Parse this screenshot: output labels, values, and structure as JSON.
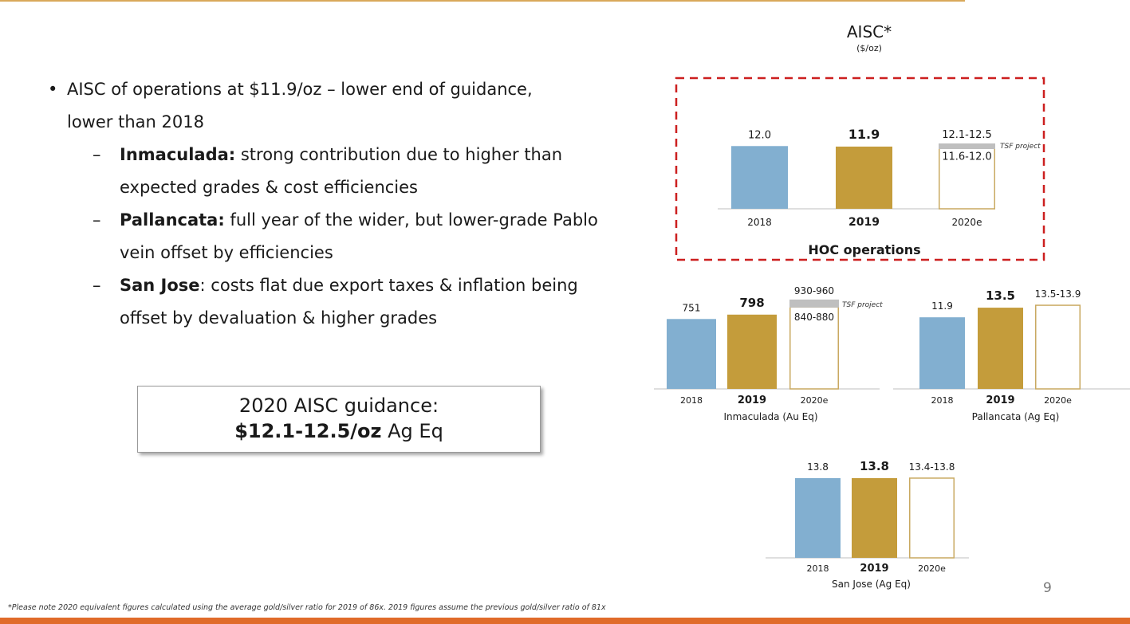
{
  "bullets": {
    "main_line1": "AISC of operations at $11.9/oz – lower end of guidance,",
    "main_line2": "lower than 2018",
    "dot": "•",
    "dash": "–",
    "inmaculada": {
      "label": "Inmaculada:",
      "line1": " strong contribution due to higher than",
      "line2": "expected grades & cost efficiencies"
    },
    "pallancata": {
      "label": "Pallancata:",
      "line1": " full year of the wider, but lower-grade Pablo",
      "line2": "vein offset by efficiencies"
    },
    "san_jose": {
      "label": "San Jose",
      "line1": ":  costs flat due export taxes & inflation being",
      "line2": "offset by devaluation & higher grades"
    }
  },
  "guidance": {
    "line1": "2020 AISC guidance:",
    "value": "$12.1-12.5/oz",
    "unit": " Ag Eq"
  },
  "aisc_title": "AISC*",
  "aisc_unit": "($/oz)",
  "footnote": "*Please note 2020 equivalent figures calculated using the average gold/silver ratio for 2019 of 86x. 2019 figures assume the previous gold/silver ratio of 81x",
  "page_number": "9",
  "colors": {
    "y2018": "#82afd0",
    "y2019": "#c49c3b",
    "guide_outline": "#c9a961",
    "tsf": "#bfbfbf",
    "dash_box": "#cc1f1f",
    "axis": "#bfbfbf"
  },
  "chart_data": [
    {
      "id": "hoc",
      "type": "bar",
      "title": "HOC operations",
      "categories": [
        "2018",
        "2019",
        "2020e"
      ],
      "values": [
        12.0,
        11.9,
        12.0
      ],
      "labels": [
        "12.0",
        "11.9",
        "11.6-12.0"
      ],
      "guidance_label": "12.1-12.5",
      "tsf_top": 12.5,
      "tsf_label": "TSF project",
      "highlight": "dashed-box"
    },
    {
      "id": "inmaculada",
      "type": "bar",
      "title": "Inmaculada (Au Eq)",
      "categories": [
        "2018",
        "2019",
        "2020e"
      ],
      "values": [
        751,
        798,
        880
      ],
      "labels": [
        "751",
        "798",
        "840-880"
      ],
      "guidance_label": "930-960",
      "tsf_top": 960,
      "tsf_label": "TSF project"
    },
    {
      "id": "pallancata",
      "type": "bar",
      "title": "Pallancata (Ag Eq)",
      "categories": [
        "2018",
        "2019",
        "2020e"
      ],
      "values": [
        11.9,
        13.5,
        13.9
      ],
      "labels": [
        "11.9",
        "13.5",
        "13.5-13.9"
      ]
    },
    {
      "id": "sanjose",
      "type": "bar",
      "title": "San Jose (Ag Eq)",
      "categories": [
        "2018",
        "2019",
        "2020e"
      ],
      "values": [
        13.8,
        13.8,
        13.8
      ],
      "labels": [
        "13.8",
        "13.8",
        "13.4-13.8"
      ]
    }
  ]
}
